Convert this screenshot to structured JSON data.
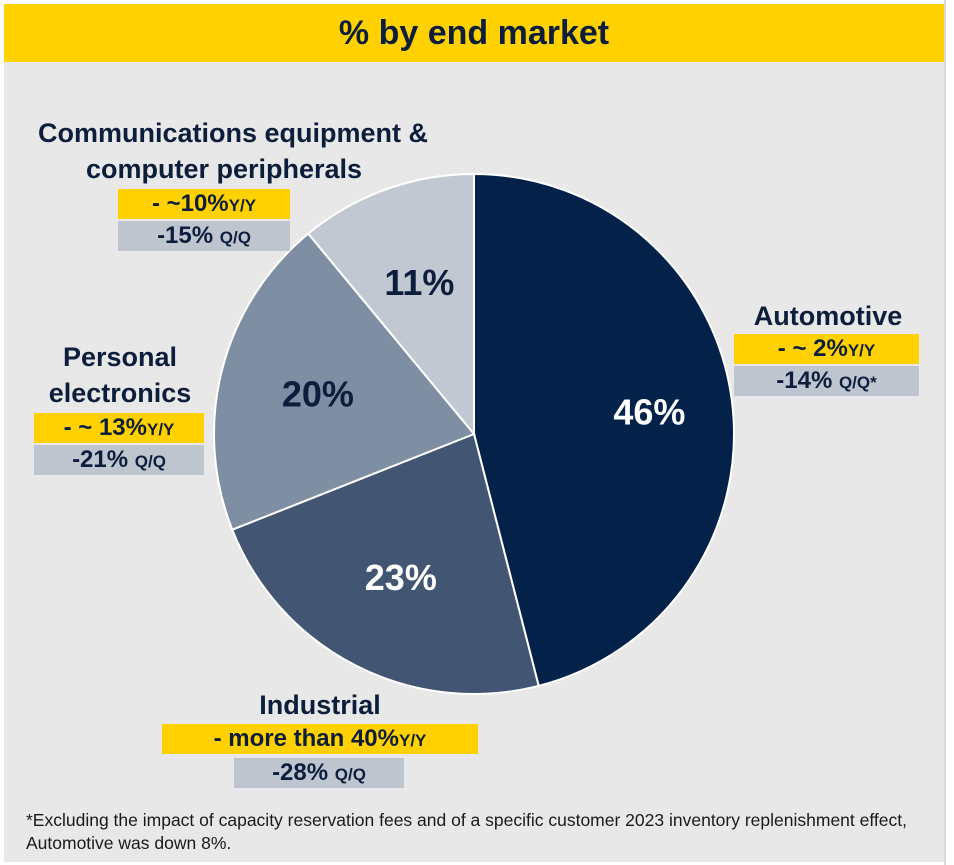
{
  "title": "% by end market",
  "chart_data": {
    "type": "pie",
    "title": "% by end market",
    "categories": [
      "Automotive",
      "Industrial",
      "Personal electronics",
      "Communications equipment & computer peripherals"
    ],
    "values": [
      46,
      23,
      20,
      11
    ],
    "value_labels": [
      "46%",
      "23%",
      "20%",
      "11%"
    ],
    "colors": [
      "#042149",
      "#425673",
      "#7e8ea3",
      "#c2c8d1"
    ],
    "label_colors": [
      "#ffffff",
      "#ffffff",
      "#0c1e3c",
      "#0c1e3c"
    ]
  },
  "segments": {
    "automotive": {
      "name": "Automotive",
      "yy_value": "- ~ 2%",
      "yy_suffix": "Y/Y",
      "qq_value": "-14%",
      "qq_suffix": "Q/Q*"
    },
    "industrial": {
      "name": "Industrial",
      "yy_value": "- more than 40%",
      "yy_suffix": "Y/Y",
      "qq_value": "-28%",
      "qq_suffix": "Q/Q"
    },
    "personal": {
      "name_line1": "Personal",
      "name_line2": "electronics",
      "yy_value": "- ~ 13%",
      "yy_suffix": "Y/Y",
      "qq_value": "-21%",
      "qq_suffix": "Q/Q"
    },
    "comms": {
      "name_line1": "Communications equipment &",
      "name_line2": "computer peripherals",
      "yy_value": "- ~10%",
      "yy_suffix": "Y/Y",
      "qq_value": "-15%",
      "qq_suffix": "Q/Q"
    }
  },
  "footnote": "*Excluding the impact of capacity reservation fees and of a specific customer 2023 inventory replenishment effect, Automotive was down 8%."
}
